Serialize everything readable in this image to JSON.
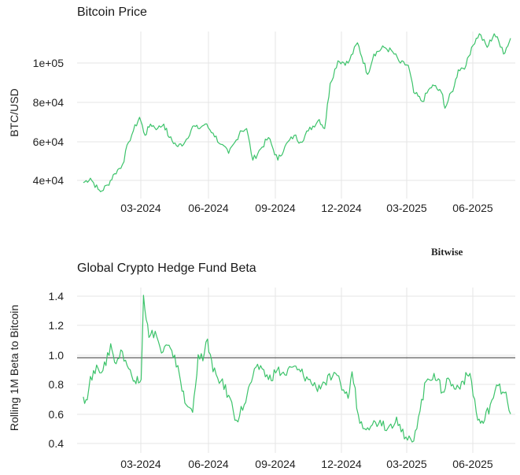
{
  "logo": "Bitwise",
  "colors": {
    "line": "#3cc36a",
    "grid": "#e6e6e6",
    "refline": "#333333",
    "text": "#1a1a1a"
  },
  "chart_data": [
    {
      "type": "line",
      "title": "Bitcoin Price",
      "xlabel": "",
      "ylabel": "BTC/USD",
      "x_ticks": [
        "03-2024",
        "06-2024",
        "09-2024",
        "12-2024",
        "03-2025",
        "06-2025"
      ],
      "y_ticks": [
        "4e+04",
        "6e+04",
        "8e+04",
        "1e+05"
      ],
      "xlim": [
        "2023-12-24",
        "2025-07-07"
      ],
      "ylim": [
        37000,
        111000
      ],
      "grid": true,
      "series": [
        {
          "x": [
            "2024-01-01",
            "2024-01-10",
            "2024-01-20",
            "2024-01-23",
            "2024-02-01",
            "2024-02-10",
            "2024-02-20",
            "2024-02-28",
            "2024-03-05",
            "2024-03-13",
            "2024-03-20",
            "2024-03-27",
            "2024-04-05",
            "2024-04-13",
            "2024-04-20",
            "2024-05-01",
            "2024-05-10",
            "2024-05-20",
            "2024-05-27",
            "2024-06-05",
            "2024-06-15",
            "2024-06-25",
            "2024-07-05",
            "2024-07-15",
            "2024-07-20",
            "2024-07-28",
            "2024-08-05",
            "2024-08-15",
            "2024-08-25",
            "2024-09-06",
            "2024-09-15",
            "2024-09-27",
            "2024-10-05",
            "2024-10-15",
            "2024-10-29",
            "2024-11-05",
            "2024-11-12",
            "2024-11-22",
            "2024-12-05",
            "2024-12-17",
            "2024-12-30",
            "2025-01-07",
            "2025-01-20",
            "2025-01-31",
            "2025-02-10",
            "2025-02-20",
            "2025-02-27",
            "2025-03-10",
            "2025-03-20",
            "2025-03-25",
            "2025-04-05",
            "2025-04-08",
            "2025-04-20",
            "2025-04-25",
            "2025-05-05",
            "2025-05-12",
            "2025-05-22",
            "2025-06-01",
            "2025-06-10",
            "2025-06-20",
            "2025-06-22",
            "2025-07-01"
          ],
          "y": [
            44000,
            46000,
            41000,
            40000,
            43000,
            48000,
            52000,
            62000,
            67000,
            73000,
            65000,
            70000,
            68000,
            70000,
            64000,
            60000,
            62000,
            69000,
            68000,
            70000,
            66000,
            61000,
            57000,
            63000,
            67000,
            68000,
            54000,
            59000,
            64000,
            54000,
            60000,
            65000,
            62000,
            67000,
            72000,
            68000,
            88000,
            98000,
            97000,
            106000,
            92000,
            101000,
            104000,
            102000,
            97000,
            96000,
            84000,
            80000,
            86000,
            87000,
            83000,
            77000,
            87000,
            94000,
            96000,
            104000,
            110000,
            104000,
            110000,
            104000,
            101000,
            108000
          ]
        }
      ]
    },
    {
      "type": "line",
      "title": "Global Crypto Hedge Fund Beta",
      "xlabel": "",
      "ylabel": "Rolling 1M Beta to Bitcoin",
      "x_ticks": [
        "03-2024",
        "06-2024",
        "09-2024",
        "12-2024",
        "03-2025",
        "06-2025"
      ],
      "y_ticks": [
        "0.4",
        "0.6",
        "0.8",
        "1.0",
        "1.2",
        "1.4"
      ],
      "xlim": [
        "2023-12-24",
        "2025-07-07"
      ],
      "ylim": [
        0.39,
        1.45
      ],
      "grid": true,
      "reference_line": 1.0,
      "series": [
        {
          "x": [
            "2024-01-01",
            "2024-01-06",
            "2024-01-10",
            "2024-01-20",
            "2024-01-30",
            "2024-02-05",
            "2024-02-10",
            "2024-02-20",
            "2024-02-28",
            "2024-03-05",
            "2024-03-10",
            "2024-03-15",
            "2024-03-18",
            "2024-03-25",
            "2024-04-02",
            "2024-04-10",
            "2024-04-18",
            "2024-04-25",
            "2024-05-01",
            "2024-05-10",
            "2024-05-16",
            "2024-05-20",
            "2024-05-27",
            "2024-06-02",
            "2024-06-08",
            "2024-06-15",
            "2024-06-25",
            "2024-07-05",
            "2024-07-15",
            "2024-07-25",
            "2024-08-05",
            "2024-08-15",
            "2024-08-25",
            "2024-09-05",
            "2024-09-15",
            "2024-09-25",
            "2024-10-05",
            "2024-10-15",
            "2024-10-25",
            "2024-11-05",
            "2024-11-15",
            "2024-11-25",
            "2024-12-05",
            "2024-12-10",
            "2024-12-20",
            "2025-01-05",
            "2025-01-15",
            "2025-01-25",
            "2025-02-05",
            "2025-02-15",
            "2025-02-25",
            "2025-03-05",
            "2025-03-15",
            "2025-03-25",
            "2025-04-05",
            "2025-04-12",
            "2025-04-20",
            "2025-05-01",
            "2025-05-10",
            "2025-05-20",
            "2025-05-27",
            "2025-06-05",
            "2025-06-15",
            "2025-06-25",
            "2025-07-01"
          ],
          "y": [
            0.75,
            0.73,
            0.88,
            0.93,
            0.95,
            1.09,
            0.97,
            1.04,
            0.93,
            0.85,
            0.88,
            0.86,
            1.4,
            1.13,
            1.17,
            1.03,
            1.08,
            1.0,
            0.95,
            0.71,
            0.68,
            0.65,
            1.02,
            0.98,
            1.12,
            0.91,
            0.85,
            0.76,
            0.6,
            0.7,
            0.88,
            0.95,
            0.86,
            0.92,
            0.89,
            0.94,
            0.91,
            0.86,
            0.81,
            0.84,
            0.88,
            0.84,
            0.74,
            0.91,
            0.58,
            0.57,
            0.6,
            0.55,
            0.62,
            0.48,
            0.46,
            0.62,
            0.85,
            0.9,
            0.78,
            0.87,
            0.8,
            0.85,
            0.9,
            0.6,
            0.58,
            0.7,
            0.82,
            0.78,
            0.64
          ]
        }
      ]
    }
  ]
}
